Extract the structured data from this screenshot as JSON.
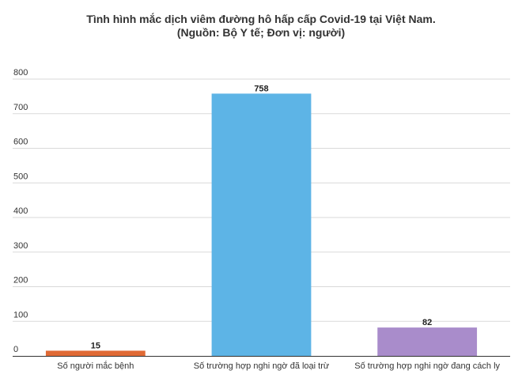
{
  "chart_data": {
    "type": "bar",
    "title": "Tình hình mắc dịch viêm đường hô hấp cấp Covid-19 tại Việt Nam.",
    "subtitle": "(Nguồn: Bộ Y tế; Đơn vị: người)",
    "xlabel": "",
    "ylabel": "",
    "categories": [
      "Số người mắc bệnh",
      "Số trường hợp nghi ngờ đã loại trừ",
      "Số trường hợp nghi ngờ đang cách ly"
    ],
    "values": [
      15,
      758,
      82
    ],
    "value_labels": [
      "15",
      "758",
      "82"
    ],
    "colors": [
      "#e06a35",
      "#5db4e6",
      "#a98ccb"
    ],
    "ylim": [
      0,
      800
    ],
    "yticks": [
      0,
      100,
      200,
      300,
      400,
      500,
      600,
      700,
      800
    ],
    "ytick_labels": [
      "0",
      "100",
      "200",
      "300",
      "400",
      "500",
      "600",
      "700",
      "800"
    ],
    "grid": true,
    "legend": "none"
  }
}
